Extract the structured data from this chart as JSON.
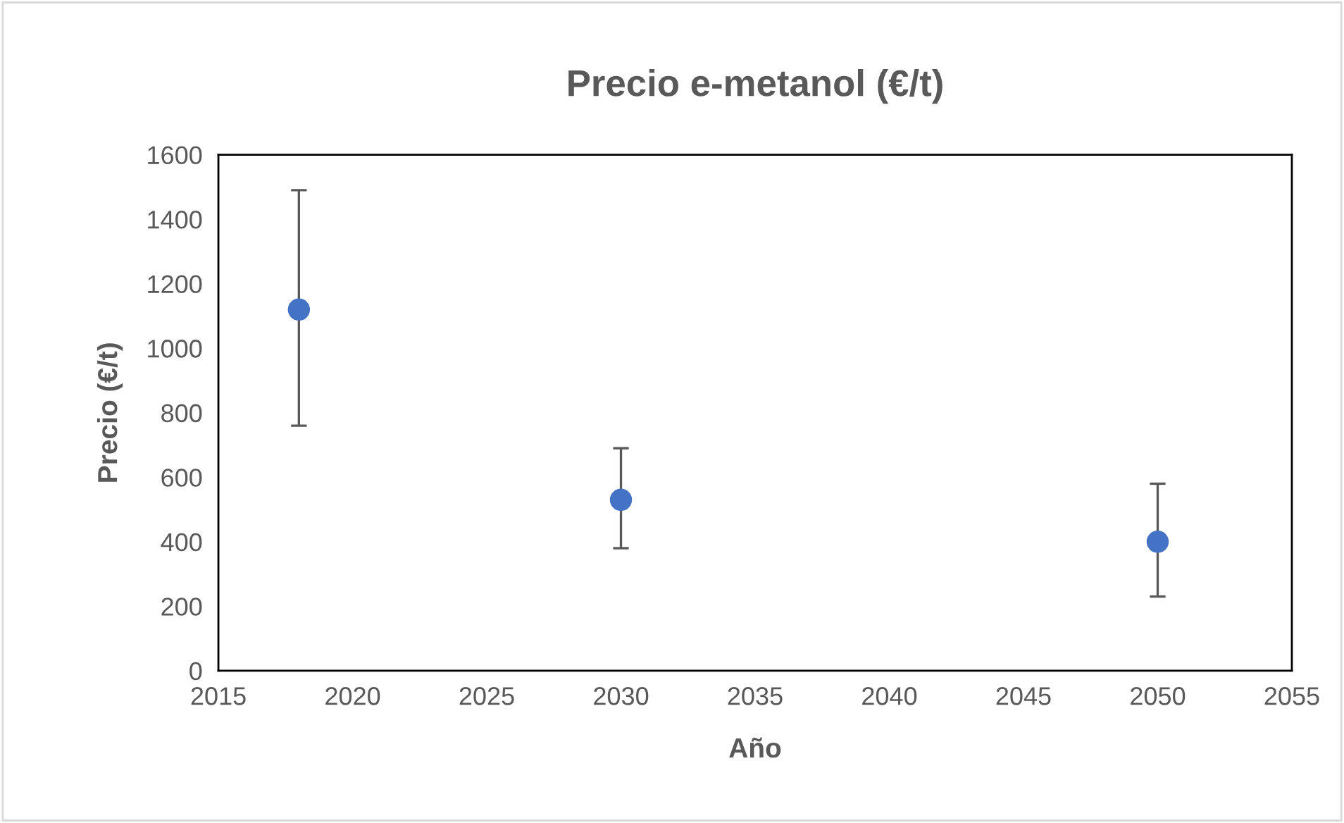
{
  "chart_data": {
    "type": "scatter",
    "title": "Precio e-metanol (€/t)",
    "xlabel": "Año",
    "ylabel": "Precio (€/t)",
    "x": [
      2018,
      2030,
      2050
    ],
    "series": [
      {
        "color": "#4472c4",
        "values": [
          1120,
          530,
          400
        ],
        "errors": [
          [
            760,
            1490
          ],
          [
            380,
            690
          ],
          [
            230,
            580
          ]
        ]
      }
    ],
    "xlim": [
      2015,
      2055
    ],
    "xticks": [
      2015,
      2020,
      2025,
      2030,
      2035,
      2040,
      2045,
      2050,
      2055
    ],
    "ylim": [
      0,
      1600
    ],
    "yticks": [
      0,
      200,
      400,
      600,
      800,
      1000,
      1200,
      1400,
      1600
    ],
    "grid": false,
    "legend": false,
    "marker": "circle"
  }
}
